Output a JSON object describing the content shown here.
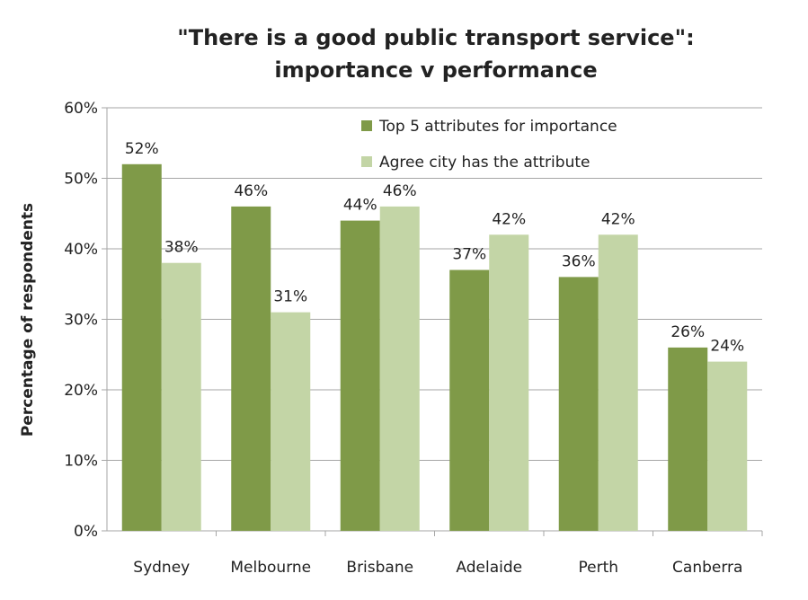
{
  "chart_data": {
    "type": "bar",
    "title_lines": [
      "\"There is a good public transport service\":",
      "importance v performance"
    ],
    "xlabel": "",
    "ylabel": "Percentage of respondents",
    "ylim": [
      0,
      60
    ],
    "yticks": [
      "0%",
      "10%",
      "20%",
      "30%",
      "40%",
      "50%",
      "60%"
    ],
    "grid": true,
    "legend_position": "top-right",
    "categories": [
      "Sydney",
      "Melbourne",
      "Brisbane",
      "Adelaide",
      "Perth",
      "Canberra"
    ],
    "series": [
      {
        "name": "Top 5 attributes for importance",
        "color": "#7f9a48",
        "values": [
          52,
          46,
          44,
          37,
          36,
          26
        ],
        "labels": [
          "52%",
          "46%",
          "44%",
          "37%",
          "36%",
          "26%"
        ]
      },
      {
        "name": "Agree city has the attribute",
        "color": "#c3d5a6",
        "values": [
          38,
          31,
          46,
          42,
          42,
          24
        ],
        "labels": [
          "38%",
          "31%",
          "46%",
          "42%",
          "42%",
          "24%"
        ]
      }
    ]
  }
}
